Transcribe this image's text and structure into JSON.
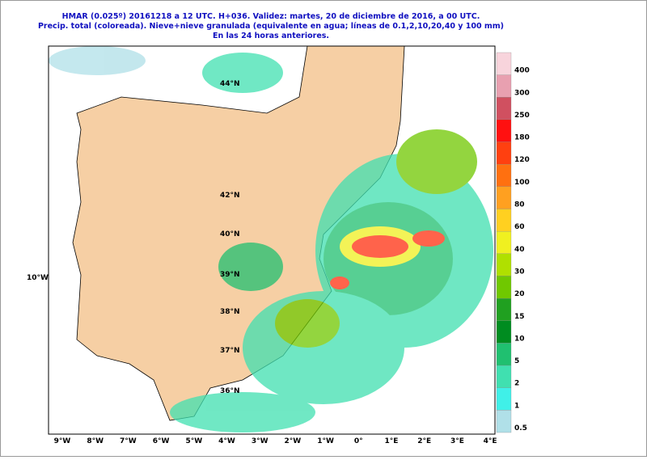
{
  "header": {
    "lines": [
      "HMAR (0.025º) 20161218 a 12 UTC.  H+036. Validez: martes, 20 de diciembre de 2016,  a  00 UTC.",
      "Precip. total (coloreada). Nieve+nieve granulada (equivalente en agua; líneas de 0.1,2,10,20,40 y 100 mm)",
      "En las 24 horas anteriores."
    ]
  },
  "legend": {
    "items": [
      {
        "label": "400",
        "color": "#f8d4dc"
      },
      {
        "label": "300",
        "color": "#e8a0b0"
      },
      {
        "label": "250",
        "color": "#d05060"
      },
      {
        "label": "180",
        "color": "#ff1010"
      },
      {
        "label": "120",
        "color": "#ff4010"
      },
      {
        "label": "100",
        "color": "#ff7010"
      },
      {
        "label": "80",
        "color": "#ffa020"
      },
      {
        "label": "60",
        "color": "#ffd020"
      },
      {
        "label": "40",
        "color": "#f0f020"
      },
      {
        "label": "30",
        "color": "#b0e000"
      },
      {
        "label": "20",
        "color": "#70c800"
      },
      {
        "label": "15",
        "color": "#20a020"
      },
      {
        "label": "10",
        "color": "#008c20"
      },
      {
        "label": "5",
        "color": "#20c070"
      },
      {
        "label": "2",
        "color": "#40e0b0"
      },
      {
        "label": "1",
        "color": "#40f0e8"
      },
      {
        "label": "0.5",
        "color": "#b0e0e8"
      }
    ]
  },
  "longitudes": [
    "9°W",
    "8°W",
    "7°W",
    "6°W",
    "5°W",
    "4°W",
    "3°W",
    "2°W",
    "1°W",
    "0°",
    "1°E",
    "2°E",
    "3°E",
    "4°E"
  ],
  "latitudes": [
    "44°N",
    "42°N",
    "40°N",
    "39°N",
    "38°N",
    "37°N",
    "36°N"
  ],
  "west_label": "10°W"
}
